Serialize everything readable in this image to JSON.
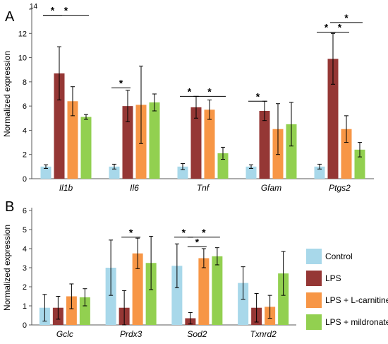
{
  "colors": {
    "Control": "#a8d8ea",
    "LPS": "#953735",
    "LPS + L-carnitine": "#f79646",
    "LPS + mildronate": "#92d050",
    "axis": "#595959",
    "sig_line": "#000000"
  },
  "legend": {
    "placement": "right of panel B",
    "items": [
      "Control",
      "LPS",
      "LPS + L-carnitine",
      "LPS + mildronate"
    ]
  },
  "chart_data": [
    {
      "type": "bar",
      "panel": "A",
      "title": "",
      "xlabel": "",
      "ylabel": "Normalized expression",
      "ylim": [
        0,
        14
      ],
      "yticks": [
        0,
        2,
        4,
        6,
        8,
        10,
        12,
        14
      ],
      "categories": [
        "Il1b",
        "Il6",
        "Tnf",
        "Gfam",
        "Ptgs2"
      ],
      "categories_italic": true,
      "series": [
        {
          "name": "Control",
          "values": [
            1.0,
            1.0,
            1.0,
            1.0,
            1.0
          ],
          "errors": [
            0.15,
            0.2,
            0.25,
            0.15,
            0.2
          ]
        },
        {
          "name": "LPS",
          "values": [
            8.7,
            6.0,
            5.9,
            5.6,
            9.9
          ],
          "errors": [
            2.2,
            1.3,
            0.9,
            0.8,
            2.1
          ]
        },
        {
          "name": "LPS + L-carnitine",
          "values": [
            6.4,
            6.1,
            5.7,
            4.1,
            4.1
          ],
          "errors": [
            1.2,
            3.2,
            0.8,
            2.1,
            1.1
          ]
        },
        {
          "name": "LPS + mildronate",
          "values": [
            5.1,
            6.3,
            2.1,
            4.5,
            2.4
          ],
          "errors": [
            0.2,
            0.7,
            0.5,
            1.8,
            0.6
          ]
        }
      ],
      "significance": [
        {
          "category": "Il1b",
          "from": 0,
          "to": 1,
          "level": 13.5,
          "label": "*"
        },
        {
          "category": "Il1b",
          "from": 0,
          "to": 3,
          "level": 13.5,
          "label": "*"
        },
        {
          "category": "Il6",
          "from": 0,
          "to": 1,
          "level": 7.5,
          "label": "*"
        },
        {
          "category": "Tnf",
          "from": 0,
          "to": 1,
          "level": 6.8,
          "label": "*"
        },
        {
          "category": "Tnf",
          "from": 1,
          "to": 3,
          "level": 6.8,
          "label": "*"
        },
        {
          "category": "Gfam",
          "from": 0,
          "to": 1,
          "level": 6.4,
          "label": "*"
        },
        {
          "category": "Ptgs2",
          "from": 0,
          "to": 1,
          "level": 12.1,
          "label": "*"
        },
        {
          "category": "Ptgs2",
          "from": 1,
          "to": 2,
          "level": 12.1,
          "label": "*"
        },
        {
          "category": "Ptgs2",
          "from": 1,
          "to": 3,
          "level": 12.9,
          "label": "*"
        }
      ]
    },
    {
      "type": "bar",
      "panel": "B",
      "title": "",
      "xlabel": "",
      "ylabel": "Normalized expression",
      "ylim": [
        0,
        6
      ],
      "yticks": [
        0,
        1,
        2,
        3,
        4,
        5,
        6
      ],
      "categories": [
        "Gclc",
        "Prdx3",
        "Sod2",
        "Txnrd2"
      ],
      "categories_italic": true,
      "series": [
        {
          "name": "Control",
          "values": [
            0.9,
            3.0,
            3.1,
            2.2
          ],
          "errors": [
            0.7,
            1.45,
            1.15,
            0.85
          ]
        },
        {
          "name": "LPS",
          "values": [
            0.9,
            0.9,
            0.35,
            0.9
          ],
          "errors": [
            0.6,
            0.9,
            0.3,
            0.75
          ]
        },
        {
          "name": "LPS + L-carnitine",
          "values": [
            1.5,
            3.75,
            3.5,
            0.95
          ],
          "errors": [
            0.65,
            0.8,
            0.5,
            0.6
          ]
        },
        {
          "name": "LPS + mildronate",
          "values": [
            1.45,
            3.25,
            3.6,
            2.7
          ],
          "errors": [
            0.45,
            1.4,
            0.45,
            1.15
          ]
        }
      ],
      "significance": [
        {
          "category": "Prdx3",
          "from": 1,
          "to": 2,
          "level": 4.6,
          "label": "*"
        },
        {
          "category": "Sod2",
          "from": 0,
          "to": 1,
          "level": 4.6,
          "label": "*"
        },
        {
          "category": "Sod2",
          "from": 1,
          "to": 2,
          "level": 4.1,
          "label": "*"
        },
        {
          "category": "Sod2",
          "from": 1,
          "to": 3,
          "level": 4.6,
          "label": "*"
        }
      ]
    }
  ],
  "panel_labels": [
    "A",
    "B"
  ]
}
